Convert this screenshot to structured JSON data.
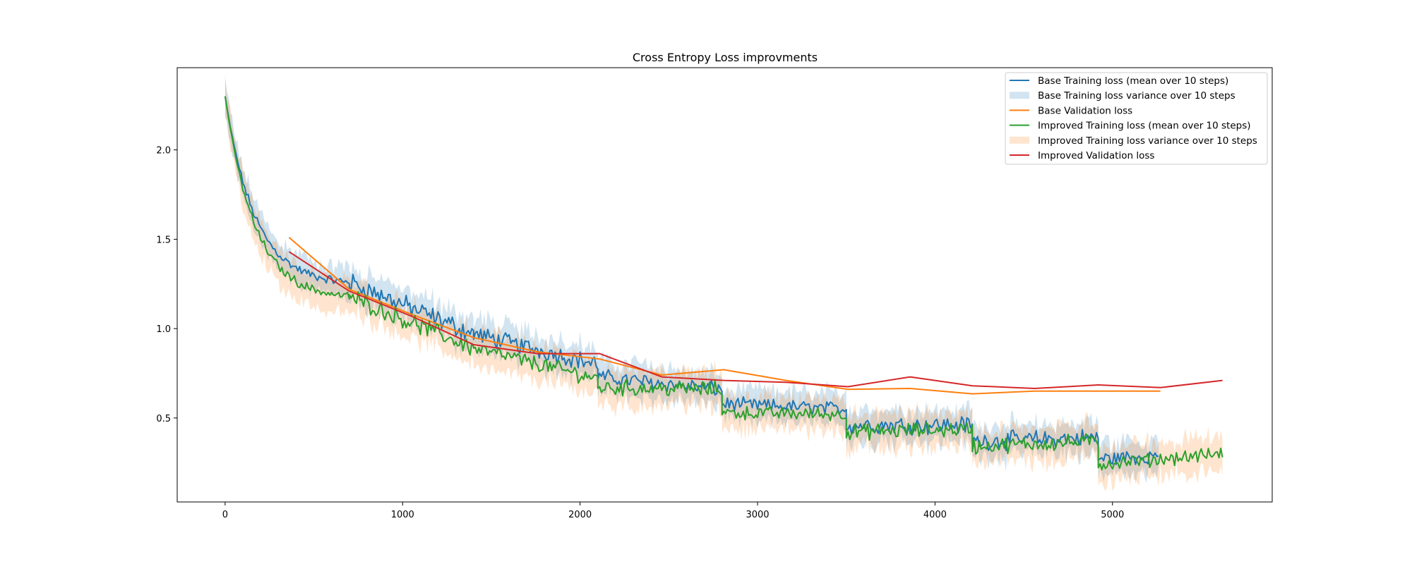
{
  "chart_data": {
    "type": "line",
    "title": "Cross Entropy Loss improvments",
    "xlabel": "",
    "ylabel": "",
    "xlim": [
      -270,
      5900
    ],
    "ylim": [
      0.03,
      2.46
    ],
    "xticks": [
      0,
      1000,
      2000,
      3000,
      4000,
      5000
    ],
    "xtick_labels": [
      "0",
      "1000",
      "2000",
      "3000",
      "4000",
      "5000"
    ],
    "yticks": [
      0.5,
      1.0,
      1.5,
      2.0
    ],
    "ytick_labels": [
      "0.5",
      "1.0",
      "1.5",
      "2.0"
    ],
    "grid": false,
    "legend_position": "top-right",
    "colors": {
      "base": "#1f77b4",
      "base_val": "#ff7f0e",
      "improved": "#2ca02c",
      "improved_val": "#d62728"
    },
    "series": [
      {
        "name": "Base Training loss (mean over 10 steps)",
        "kind": "line",
        "color": "#1f77b4",
        "segments": [
          {
            "x0": 0,
            "x1": 700,
            "start": 2.3,
            "end": 1.26,
            "noise": 0.02
          },
          {
            "x0": 700,
            "x1": 1400,
            "start": 1.26,
            "end": 0.97,
            "noise": 0.045
          },
          {
            "x0": 1400,
            "x1": 2100,
            "start": 0.97,
            "end": 0.8,
            "noise": 0.04
          },
          {
            "x0": 2100,
            "x1": 2800,
            "start": 0.73,
            "end": 0.66,
            "noise": 0.035
          },
          {
            "x0": 2800,
            "x1": 3500,
            "start": 0.58,
            "end": 0.55,
            "noise": 0.03
          },
          {
            "x0": 3500,
            "x1": 4210,
            "start": 0.46,
            "end": 0.46,
            "noise": 0.04
          },
          {
            "x0": 4210,
            "x1": 4920,
            "start": 0.37,
            "end": 0.39,
            "noise": 0.04
          },
          {
            "x0": 4920,
            "x1": 5260,
            "start": 0.27,
            "end": 0.29,
            "noise": 0.035
          }
        ]
      },
      {
        "name": "Base Training loss variance over 10 steps",
        "kind": "band",
        "color": "#1f77b4",
        "follows": 0,
        "half_width": 0.08
      },
      {
        "name": "Base Validation loss",
        "kind": "line",
        "color": "#ff7f0e",
        "x": [
          360,
          700,
          1050,
          1400,
          1760,
          2110,
          2460,
          2810,
          3160,
          3510,
          3860,
          4210,
          4560,
          4920,
          5270
        ],
        "y": [
          1.51,
          1.22,
          1.08,
          0.95,
          0.87,
          0.83,
          0.74,
          0.77,
          0.71,
          0.66,
          0.665,
          0.635,
          0.65,
          0.65,
          0.65
        ]
      },
      {
        "name": "Improved Training loss (mean over 10 steps)",
        "kind": "line",
        "color": "#2ca02c",
        "segments": [
          {
            "x0": 0,
            "x1": 700,
            "start": 2.3,
            "end": 1.18,
            "noise": 0.02
          },
          {
            "x0": 700,
            "x1": 1400,
            "start": 1.18,
            "end": 0.89,
            "noise": 0.04
          },
          {
            "x0": 1400,
            "x1": 2100,
            "start": 0.89,
            "end": 0.72,
            "noise": 0.035
          },
          {
            "x0": 2100,
            "x1": 2800,
            "start": 0.67,
            "end": 0.66,
            "noise": 0.035
          },
          {
            "x0": 2800,
            "x1": 3500,
            "start": 0.53,
            "end": 0.52,
            "noise": 0.03
          },
          {
            "x0": 3500,
            "x1": 4210,
            "start": 0.42,
            "end": 0.44,
            "noise": 0.035
          },
          {
            "x0": 4210,
            "x1": 4920,
            "start": 0.34,
            "end": 0.37,
            "noise": 0.035
          },
          {
            "x0": 4920,
            "x1": 5620,
            "start": 0.24,
            "end": 0.3,
            "noise": 0.03
          }
        ]
      },
      {
        "name": "Improved Training loss variance over 10 steps",
        "kind": "band",
        "color": "#ff7f0e",
        "follows": 3,
        "half_width": 0.09
      },
      {
        "name": "Improved Validation loss",
        "kind": "line",
        "color": "#d62728",
        "x": [
          360,
          700,
          1050,
          1400,
          1760,
          2110,
          2460,
          2810,
          3160,
          3510,
          3860,
          4210,
          4560,
          4920,
          5270,
          5620
        ],
        "y": [
          1.43,
          1.21,
          1.07,
          0.91,
          0.86,
          0.86,
          0.73,
          0.71,
          0.7,
          0.675,
          0.73,
          0.68,
          0.665,
          0.685,
          0.67,
          0.71
        ]
      }
    ]
  }
}
